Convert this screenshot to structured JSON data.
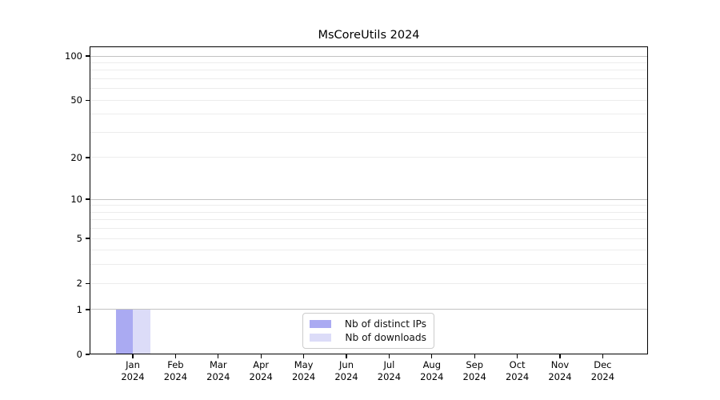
{
  "chart_data": {
    "type": "bar",
    "title": "MsCoreUtils 2024",
    "x_categories": [
      {
        "month": "Jan",
        "year": "2024"
      },
      {
        "month": "Feb",
        "year": "2024"
      },
      {
        "month": "Mar",
        "year": "2024"
      },
      {
        "month": "Apr",
        "year": "2024"
      },
      {
        "month": "May",
        "year": "2024"
      },
      {
        "month": "Jun",
        "year": "2024"
      },
      {
        "month": "Jul",
        "year": "2024"
      },
      {
        "month": "Aug",
        "year": "2024"
      },
      {
        "month": "Sep",
        "year": "2024"
      },
      {
        "month": "Oct",
        "year": "2024"
      },
      {
        "month": "Nov",
        "year": "2024"
      },
      {
        "month": "Dec",
        "year": "2024"
      }
    ],
    "series": [
      {
        "name": "Nb of distinct IPs",
        "color": "#aaaaf2",
        "values": [
          1,
          0,
          0,
          0,
          0,
          0,
          0,
          0,
          0,
          0,
          0,
          0
        ]
      },
      {
        "name": "Nb of downloads",
        "color": "#dcdcf8",
        "values": [
          1,
          0,
          0,
          0,
          0,
          0,
          0,
          0,
          0,
          0,
          0,
          0
        ]
      }
    ],
    "y_axis": {
      "scale": "log1p",
      "tick_labels": [
        "100",
        "50",
        "20",
        "10",
        "5",
        "2",
        "1",
        "0"
      ],
      "tick_values": [
        100,
        50,
        20,
        10,
        5,
        2,
        1,
        0
      ],
      "grid_values": [
        1,
        2,
        3,
        4,
        5,
        6,
        7,
        8,
        9,
        10,
        20,
        30,
        40,
        50,
        60,
        70,
        80,
        90,
        100
      ],
      "max_labeled": 100,
      "min": 0
    },
    "legend": {
      "position": "bottom-center",
      "entries": [
        "Nb of distinct IPs",
        "Nb of downloads"
      ]
    },
    "grid": true,
    "colors": {
      "grid_decade": "#c2c2c2",
      "grid_minor": "#ececec",
      "axis": "#000000",
      "background": "#ffffff"
    }
  }
}
